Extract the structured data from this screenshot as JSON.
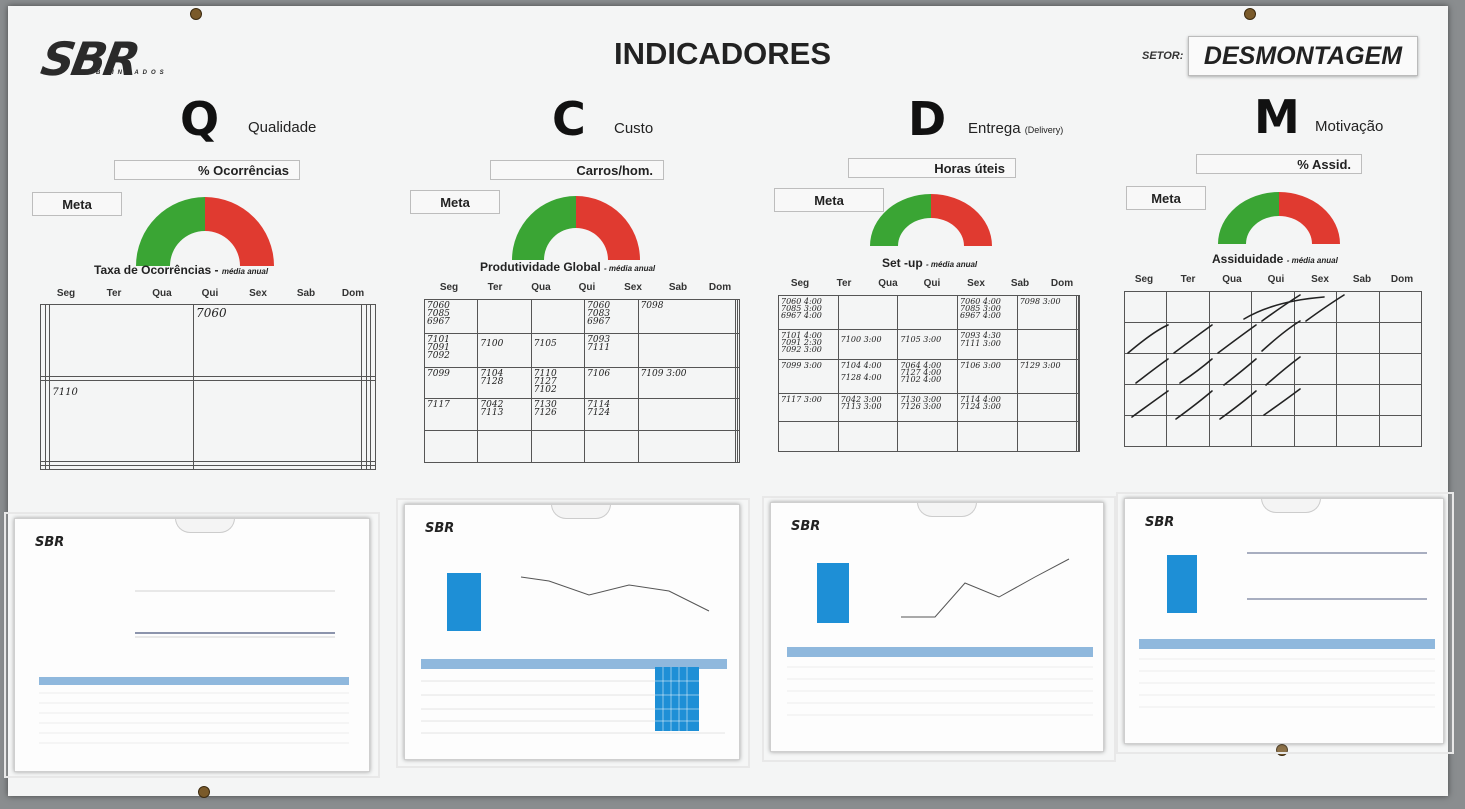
{
  "board": {
    "brand": "SBR",
    "brand_sub": "BLINDADOS",
    "title": "INDICADORES",
    "setor_label": "SETOR:",
    "setor_value": "DESMONTAGEM"
  },
  "days": [
    "Seg",
    "Ter",
    "Qua",
    "Qui",
    "Sex",
    "Sab",
    "Dom"
  ],
  "meta_label": "Meta",
  "colors": {
    "gauge_green": "#3aa534",
    "gauge_red": "#e03a30"
  },
  "indicators": [
    {
      "letter": "Q",
      "name": "Qualidade",
      "name_note": "",
      "unit": "% Ocorrências",
      "caption": "Taxa de Ocorrências -",
      "caption_note": "média anual"
    },
    {
      "letter": "C",
      "name": "Custo",
      "name_note": "",
      "unit": "Carros/hom.",
      "caption": "Produtividade Global",
      "caption_note": "- média anual"
    },
    {
      "letter": "D",
      "name": "Entrega",
      "name_note": "(Delivery)",
      "unit": "Horas úteis",
      "caption": "Set -up",
      "caption_note": "- média anual"
    },
    {
      "letter": "M",
      "name": "Motivação",
      "name_note": "",
      "unit": "% Assid.",
      "caption": "Assiduidade",
      "caption_note": "- média anual"
    }
  ],
  "entries": {
    "q": [
      "7060",
      "7110"
    ],
    "c": [
      "7060\n7085\n6967",
      "7060\n7083\n6967",
      "7098",
      "7101\n7091\n7092",
      "7100",
      "7105",
      "7093\n7111",
      "7099",
      "7104\n7128",
      "7110\n7127\n7102",
      "7106",
      "7109 3:00",
      "7117",
      "7042\n7113",
      "7130\n7126",
      "7114\n7124"
    ],
    "d": [
      "7060 4:00\n7085 3:00\n6967 4:00",
      "7060 4:00\n7085 3:00\n6967 4:00",
      "7098 3:00",
      "7101 4:00\n7091 2:30\n7092 3:00",
      "7100 3:00",
      "7105 3:00",
      "7093 4:30\n7111 3:00",
      "7099 3:00",
      "7104 4:00",
      "7064 4:00\n7127 4:00\n7102 4:00",
      "7106 3:00",
      "7129 3:00",
      "7128 4:00",
      "7117 3:00",
      "7042 3:00\n7113 3:00",
      "7130 3:00\n7126 3:00",
      "7114 4:00\n7124 3:00"
    ]
  },
  "sheets": [
    {
      "logo": "SBR"
    },
    {
      "logo": "SBR"
    },
    {
      "logo": "SBR"
    },
    {
      "logo": "SBR"
    }
  ]
}
